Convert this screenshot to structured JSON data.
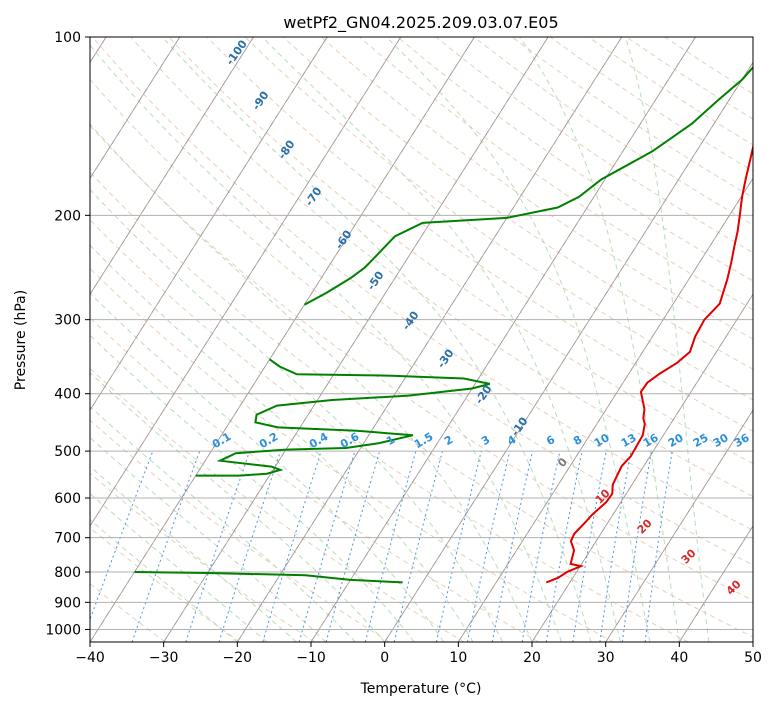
{
  "chart_data": {
    "type": "line",
    "title": "wetPf2_GN04.2025.209.03.07.E05",
    "xlabel": "Temperature (°C)",
    "ylabel": "Pressure (hPa)",
    "xlim": [
      -40,
      50
    ],
    "ylim": [
      1050,
      100
    ],
    "y_scale": "log",
    "x_ticks": [
      -40,
      -30,
      -20,
      -10,
      0,
      10,
      20,
      30,
      40,
      50
    ],
    "y_ticks": [
      1000,
      900,
      800,
      700,
      600,
      500,
      400,
      300,
      200,
      100
    ],
    "grid": true,
    "series": [
      {
        "color": "#e00000",
        "points": [
          [
            16.8,
            833
          ],
          [
            18.0,
            818
          ],
          [
            18.7,
            800
          ],
          [
            20.1,
            782
          ],
          [
            18.5,
            775
          ],
          [
            17.8,
            735
          ],
          [
            16.6,
            710
          ],
          [
            16.4,
            690
          ],
          [
            16.9,
            660
          ],
          [
            17.2,
            640
          ],
          [
            18.0,
            610
          ],
          [
            18.1,
            590
          ],
          [
            17.4,
            570
          ],
          [
            17.2,
            550
          ],
          [
            17.0,
            530
          ],
          [
            17.4,
            510
          ],
          [
            17.3,
            490
          ],
          [
            17.2,
            470
          ],
          [
            16.5,
            450
          ],
          [
            15.8,
            440
          ],
          [
            15.2,
            425
          ],
          [
            13.2,
            397
          ],
          [
            13.3,
            383
          ],
          [
            14.2,
            370
          ],
          [
            15.6,
            355
          ],
          [
            16.4,
            340
          ],
          [
            15.8,
            320
          ],
          [
            15.6,
            300
          ],
          [
            16.3,
            282
          ],
          [
            15.2,
            256
          ],
          [
            14.3,
            240
          ],
          [
            13.3,
            225
          ],
          [
            12.5,
            213
          ],
          [
            11.4,
            200
          ],
          [
            10.1,
            186
          ],
          [
            9.1,
            174
          ],
          [
            8.1,
            162
          ],
          [
            7.0,
            150
          ],
          [
            6.1,
            139
          ],
          [
            5.4,
            130
          ],
          [
            4.4,
            122
          ],
          [
            3.3,
            118
          ],
          [
            2.0,
            113
          ],
          [
            2.2,
            108
          ],
          [
            4.0,
            104
          ],
          [
            5.5,
            100
          ]
        ]
      },
      {
        "color": "#008000",
        "points": [
          [
            -2.7,
            833
          ],
          [
            -10.0,
            825
          ],
          [
            -16.5,
            810
          ],
          [
            -30.0,
            803
          ],
          [
            -40.0,
            800
          ]
        ]
      },
      {
        "color": "#008000",
        "points": [
          [
            -40.0,
            550
          ],
          [
            -34.0,
            550
          ],
          [
            -30.5,
            546
          ],
          [
            -29.0,
            538
          ],
          [
            -30.5,
            531
          ],
          [
            -38.0,
            519
          ],
          [
            -36.5,
            504
          ],
          [
            -30.0,
            497
          ],
          [
            -22.0,
            494
          ],
          [
            -18.0,
            485
          ],
          [
            -14.0,
            470
          ],
          [
            -22.0,
            462
          ],
          [
            -33.0,
            456
          ],
          [
            -36.5,
            447
          ],
          [
            -37.0,
            434
          ],
          [
            -35.0,
            419
          ],
          [
            -28.0,
            410
          ],
          [
            -18.0,
            403
          ],
          [
            -10.0,
            392
          ],
          [
            -8.0,
            385
          ],
          [
            -12.0,
            377
          ],
          [
            -22.0,
            373
          ],
          [
            -35.0,
            371
          ],
          [
            -38.0,
            360
          ],
          [
            -40.0,
            350
          ]
        ]
      },
      {
        "color": "#008000",
        "points": [
          [
            -40.0,
            283
          ],
          [
            -38.0,
            270
          ],
          [
            -36.0,
            255
          ],
          [
            -35.0,
            245
          ],
          [
            -34.5,
            235
          ],
          [
            -33.6,
            217
          ],
          [
            -31.0,
            206
          ],
          [
            -20.0,
            202
          ],
          [
            -14.0,
            194
          ],
          [
            -12.0,
            186
          ],
          [
            -10.5,
            174
          ],
          [
            -6.0,
            156
          ],
          [
            -3.0,
            140
          ],
          [
            -1.5,
            128
          ],
          [
            0.0,
            118
          ],
          [
            0.8,
            108
          ],
          [
            1.8,
            104
          ],
          [
            2.9,
            100
          ]
        ]
      }
    ],
    "isotherm_labels": [
      "-100",
      "-90",
      "-80",
      "-70",
      "-60",
      "-50",
      "-40",
      "-30",
      "-20",
      "-10"
    ],
    "mixing_ratio_labels": [
      "0.1",
      "0.2",
      "0.4",
      "0.6",
      "1",
      "1.5",
      "2",
      "3",
      "4",
      "6",
      "8",
      "10",
      "13",
      "16",
      "20",
      "25",
      "30",
      "36"
    ],
    "moist_adiabat_labels": [
      "0",
      "10",
      "20",
      "30",
      "40"
    ],
    "colors": {
      "dry_adiabat": "#e8d0b8",
      "moist_adiabat": "#b8ddb8",
      "isotherm_dashed": "#f4b19c",
      "mixing_ratio": "#4a96d8",
      "isotherm_label": "#2a6fa8",
      "mixing_label": "#2b8fe0",
      "moist_label": "#d62a2a",
      "zero_label": "#7a7a7a",
      "skewed_isotherm": "#999999"
    }
  }
}
